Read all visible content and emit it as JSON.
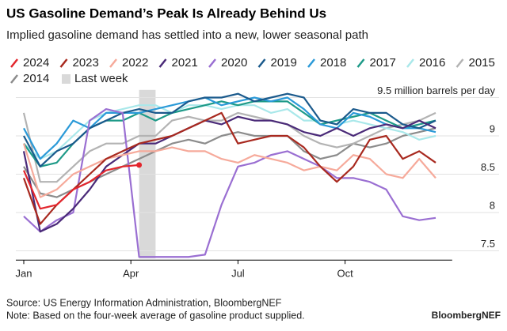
{
  "chart_data": {
    "type": "line",
    "title": "US Gasoline Demand’s Peak Is Already Behind Us",
    "subtitle": "Implied gasoline demand has settled into a new, lower seasonal path",
    "source": "Source: US Energy Information Administration, BloombergNEF",
    "note": "Note: Based on the four-week average of gasoline product supplied.",
    "brand": "BloombergNEF",
    "x": [
      1,
      3,
      5,
      7,
      9,
      11,
      13,
      15,
      17,
      19,
      21,
      23,
      25,
      27,
      29,
      31,
      33,
      35,
      37,
      39,
      41,
      43,
      45,
      47,
      49,
      51
    ],
    "xlim": [
      1,
      53
    ],
    "xticks": [
      {
        "value": 1,
        "label": "Jan"
      },
      {
        "value": 14,
        "label": "Apr"
      },
      {
        "value": 27,
        "label": "Jul"
      },
      {
        "value": 40,
        "label": "Oct"
      }
    ],
    "ylim": [
      7.4,
      9.6
    ],
    "yticks": [
      7.5,
      8.0,
      8.5,
      9.0,
      {
        "value": 9.5,
        "label": "9.5 million barrels per day"
      }
    ],
    "grid": true,
    "shade": {
      "name": "Last week",
      "x": [
        15,
        17
      ],
      "color": "#d9d9d9"
    },
    "series": [
      {
        "name": "2024",
        "color": "#e3262d",
        "values": [
          8.55,
          8.05,
          8.1,
          8.3,
          8.4,
          8.55,
          8.6,
          8.62,
          null,
          null,
          null,
          null,
          null,
          null,
          null,
          null,
          null,
          null,
          null,
          null,
          null,
          null,
          null,
          null,
          null,
          null
        ]
      },
      {
        "name": "2023",
        "color": "#a8291f",
        "values": [
          8.45,
          7.85,
          8.1,
          8.3,
          8.5,
          8.7,
          8.8,
          8.9,
          8.95,
          9.0,
          9.1,
          9.2,
          9.3,
          8.9,
          8.95,
          9.0,
          9.0,
          8.85,
          8.6,
          8.4,
          8.6,
          8.95,
          9.0,
          8.7,
          8.8,
          8.65
        ]
      },
      {
        "name": "2022",
        "color": "#f6aa9b",
        "values": [
          8.9,
          8.2,
          8.3,
          8.5,
          8.6,
          8.7,
          8.75,
          8.8,
          8.8,
          8.85,
          8.8,
          8.8,
          8.7,
          8.65,
          8.75,
          8.7,
          8.65,
          8.55,
          8.6,
          8.55,
          8.75,
          8.7,
          8.5,
          8.45,
          8.7,
          8.45
        ]
      },
      {
        "name": "2021",
        "color": "#4a2a78",
        "values": [
          8.8,
          7.75,
          7.85,
          8.05,
          8.3,
          8.6,
          8.75,
          8.9,
          8.9,
          9.0,
          9.1,
          9.2,
          9.15,
          9.25,
          9.2,
          9.2,
          9.15,
          9.05,
          9.0,
          9.1,
          9.0,
          9.1,
          9.15,
          9.1,
          9.2,
          9.1
        ]
      },
      {
        "name": "2020",
        "color": "#9a6fd2",
        "values": [
          7.95,
          7.75,
          7.9,
          8.0,
          9.2,
          9.35,
          9.3,
          7.42,
          7.42,
          7.42,
          7.42,
          7.45,
          8.1,
          8.6,
          8.65,
          8.75,
          8.8,
          8.7,
          8.6,
          8.45,
          8.45,
          8.4,
          8.3,
          7.95,
          7.9,
          7.93
        ]
      },
      {
        "name": "2019",
        "color": "#1b5a8c",
        "values": [
          9.0,
          8.6,
          8.8,
          8.9,
          9.1,
          9.2,
          9.3,
          9.35,
          9.3,
          9.3,
          9.45,
          9.5,
          9.5,
          9.55,
          9.45,
          9.5,
          9.55,
          9.5,
          9.2,
          9.15,
          9.35,
          9.3,
          9.3,
          9.15,
          9.1,
          9.2
        ]
      },
      {
        "name": "2018",
        "color": "#2b9ad8",
        "values": [
          9.1,
          8.7,
          8.9,
          9.2,
          9.1,
          9.3,
          9.3,
          9.3,
          9.35,
          9.4,
          9.45,
          9.5,
          9.4,
          9.45,
          9.5,
          9.45,
          9.5,
          9.35,
          9.15,
          9.1,
          9.3,
          9.25,
          9.15,
          9.1,
          9.1,
          9.05
        ]
      },
      {
        "name": "2017",
        "color": "#1e9a88",
        "values": [
          8.9,
          8.6,
          8.65,
          8.9,
          9.1,
          9.2,
          9.2,
          9.3,
          9.2,
          9.3,
          9.35,
          9.4,
          9.45,
          9.4,
          9.45,
          9.45,
          9.45,
          9.3,
          9.15,
          9.2,
          9.25,
          9.3,
          9.2,
          9.1,
          9.15,
          9.2
        ]
      },
      {
        "name": "2016",
        "color": "#a9e8ea",
        "values": [
          8.9,
          8.7,
          8.8,
          9.0,
          9.2,
          9.3,
          9.35,
          9.4,
          9.4,
          9.3,
          9.4,
          9.4,
          9.35,
          9.4,
          9.4,
          9.3,
          9.35,
          9.2,
          9.2,
          9.15,
          9.2,
          9.15,
          9.1,
          9.05,
          8.95,
          9.0
        ]
      },
      {
        "name": "2015",
        "color": "#b3b3b3",
        "values": [
          9.3,
          8.4,
          8.4,
          8.6,
          8.8,
          8.9,
          8.9,
          9.0,
          9.0,
          9.2,
          9.25,
          9.2,
          9.2,
          9.3,
          9.25,
          9.2,
          9.15,
          9.0,
          8.9,
          8.85,
          8.9,
          9.0,
          9.1,
          9.15,
          9.2,
          9.3
        ]
      },
      {
        "name": "2014",
        "color": "#8c8c8c",
        "values": [
          8.6,
          8.25,
          8.2,
          8.3,
          8.4,
          8.5,
          8.6,
          8.7,
          8.8,
          8.9,
          8.95,
          8.9,
          9.0,
          9.05,
          9.0,
          9.0,
          9.0,
          8.8,
          8.7,
          8.75,
          8.9,
          8.85,
          8.9,
          9.0,
          9.05,
          9.1
        ]
      }
    ]
  }
}
